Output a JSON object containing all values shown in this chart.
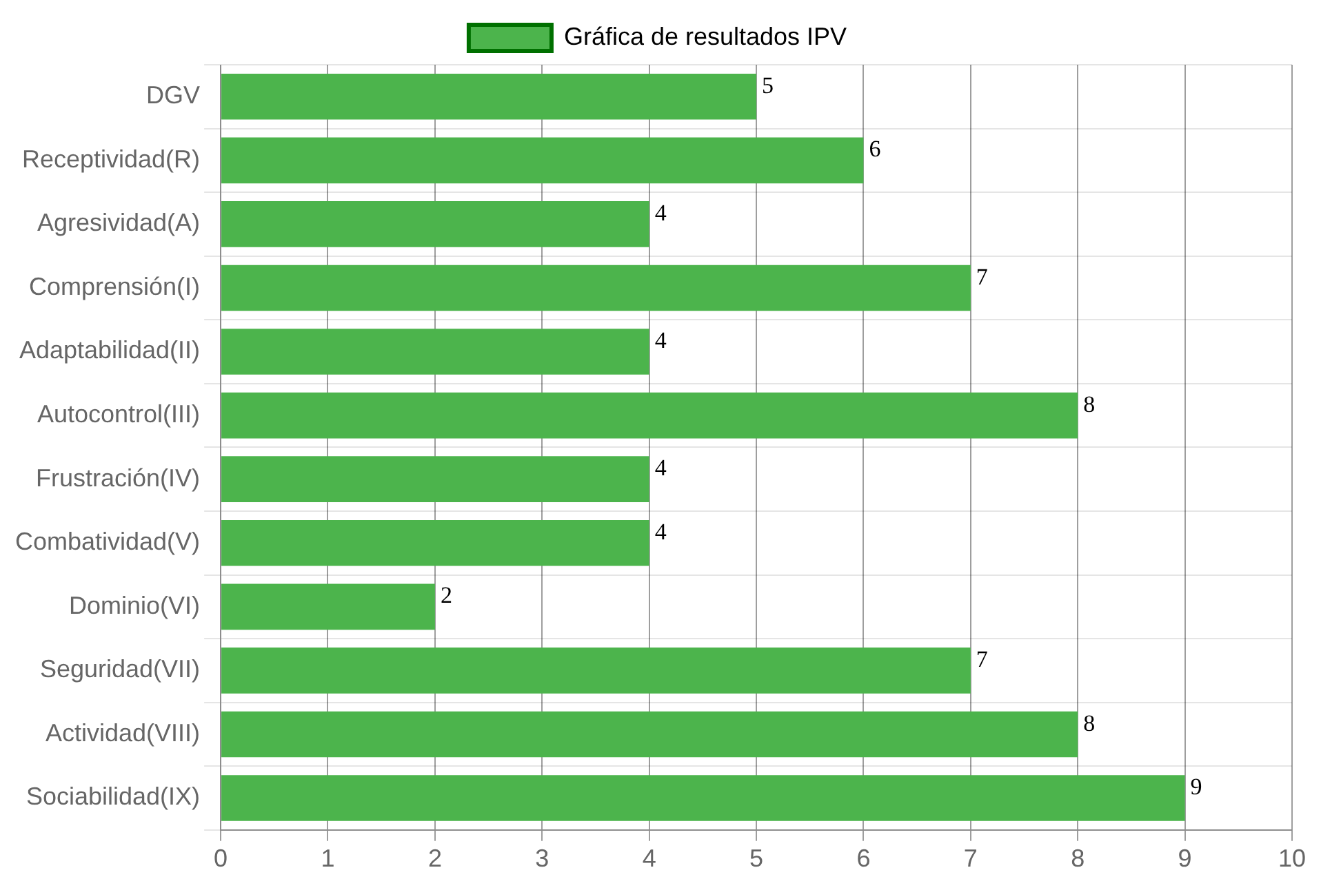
{
  "chart_data": {
    "type": "bar",
    "orientation": "horizontal",
    "categories": [
      "DGV",
      "Receptividad(R)",
      "Agresividad(A)",
      "Comprensión(I)",
      "Adaptabilidad(II)",
      "Autocontrol(III)",
      "Frustración(IV)",
      "Combatividad(V)",
      "Dominio(VI)",
      "Seguridad(VII)",
      "Actividad(VIII)",
      "Sociabilidad(IX)"
    ],
    "series": [
      {
        "name": "Gráfica de resultados IPV",
        "color": "#4cb44c",
        "values": [
          5,
          6,
          4,
          7,
          4,
          8,
          4,
          4,
          2,
          7,
          8,
          9
        ]
      }
    ],
    "xlim": [
      0,
      10
    ],
    "xticks": [
      0,
      1,
      2,
      3,
      4,
      5,
      6,
      7,
      8,
      9,
      10
    ],
    "grid": true,
    "legend": "top",
    "data_labels": true
  }
}
